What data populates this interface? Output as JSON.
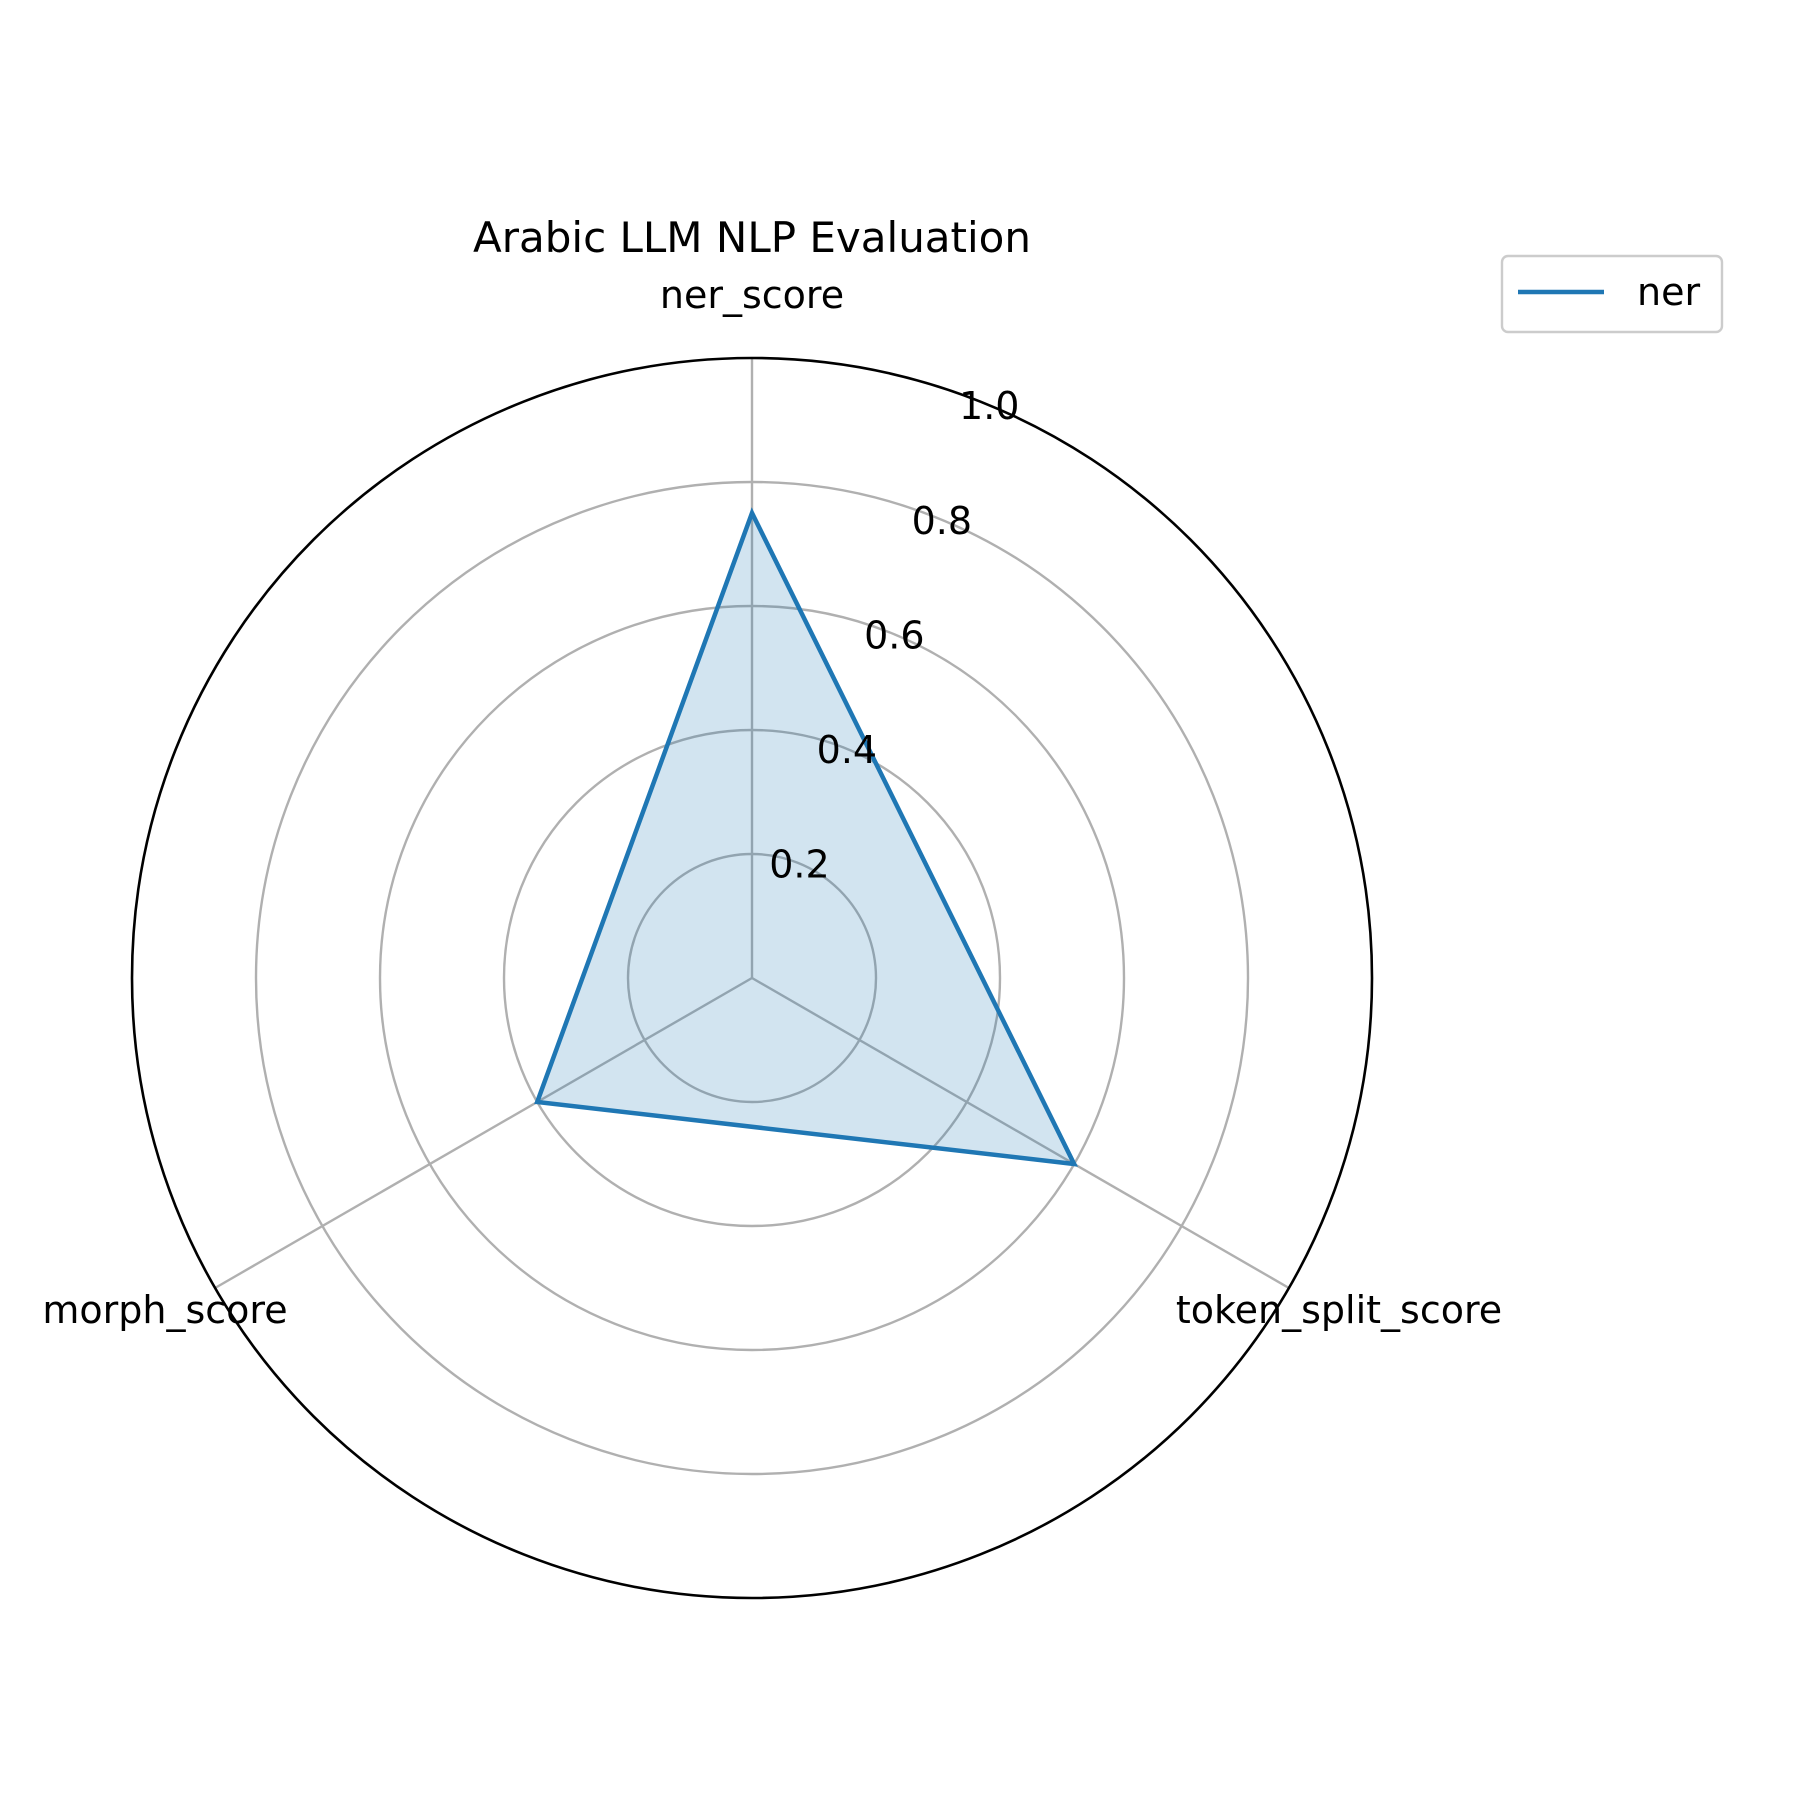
{
  "chart_data": {
    "type": "radar",
    "title": "Arabic LLM NLP Evaluation",
    "axes": [
      "ner_score",
      "token_split_score",
      "morph_score"
    ],
    "rlim": [
      0,
      1.0
    ],
    "rticks": [
      "0.2",
      "0.4",
      "0.6",
      "0.8",
      "1.0"
    ],
    "rtick_values": [
      0.2,
      0.4,
      0.6,
      0.8,
      1.0
    ],
    "grid": true,
    "legend_position": "top-right",
    "series": [
      {
        "name": "ner",
        "values": [
          0.75,
          0.6,
          0.4
        ],
        "color": "#1f77b4",
        "fill_opacity": 0.2
      }
    ],
    "colors": {
      "grid": "#b0b0b0",
      "spine": "#000000",
      "series": "#1f77b4"
    }
  }
}
